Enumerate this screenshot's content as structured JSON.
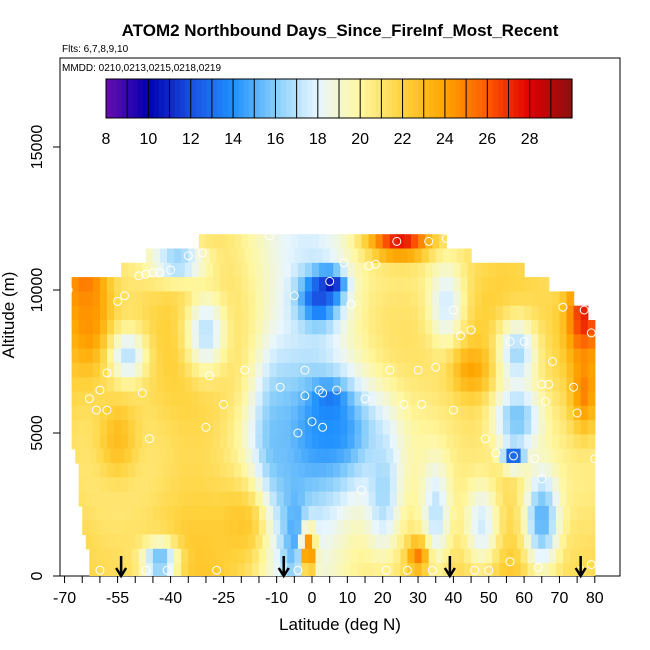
{
  "chart_data": {
    "type": "heatmap",
    "title": "ATOM2 Northbound Days_Since_FireInf_Most_Recent",
    "flights_label": "Flts: 6,7,8,9,10",
    "mmdd_label": "MMDD: 0210,0213,0215,0218,0219",
    "xlabel": "Latitude (deg N)",
    "ylabel": "Altitude (m)",
    "xlim": [
      -70,
      82
    ],
    "ylim": [
      0,
      17500
    ],
    "x_ticks": [
      -70,
      -55,
      -40,
      -25,
      -10,
      0,
      10,
      20,
      30,
      40,
      50,
      60,
      70,
      80
    ],
    "x_tick_labels": [
      "-70",
      "-55",
      "-40",
      "-25",
      "-10",
      "0",
      "10",
      "20",
      "30",
      "40",
      "50",
      "60",
      "70",
      "80"
    ],
    "x_minor_ticks": [
      -65,
      -60,
      -50,
      -45,
      -35,
      -30,
      -20,
      -15,
      -5,
      5,
      15,
      25,
      35,
      45,
      55,
      65,
      75
    ],
    "y_ticks": [
      0,
      5000,
      10000,
      15000
    ],
    "y_tick_labels": [
      "0",
      "5000",
      "10000",
      "15000"
    ],
    "colorbar": {
      "min": 8,
      "max": 30,
      "ticks": [
        8,
        10,
        12,
        14,
        16,
        18,
        20,
        22,
        24,
        26,
        28
      ],
      "tick_labels": [
        "8",
        "10",
        "12",
        "14",
        "16",
        "18",
        "20",
        "22",
        "24",
        "26",
        "28"
      ],
      "colors": [
        "#6a0dad",
        "#0000b0",
        "#1a4fe0",
        "#1e90ff",
        "#87cefa",
        "#e8f6ff",
        "#fff7a0",
        "#ffd23c",
        "#ffa500",
        "#ff5a00",
        "#e00000",
        "#8b1010"
      ]
    },
    "grid": false,
    "arrow_latitudes": [
      -54,
      -8,
      39,
      76
    ],
    "layers": [
      {
        "alt": 11700,
        "lat": [
          -32,
          38
        ]
      },
      {
        "alt": 11200,
        "lat": [
          -47,
          45
        ]
      },
      {
        "alt": 10700,
        "lat": [
          -54,
          60
        ]
      },
      {
        "alt": 10200,
        "lat": [
          -68,
          67
        ]
      },
      {
        "alt": 9700,
        "lat": [
          -68,
          74
        ]
      },
      {
        "alt": 9200,
        "lat": [
          -68,
          78
        ]
      },
      {
        "alt": 8700,
        "lat": [
          -68,
          80
        ]
      },
      {
        "alt": 8200,
        "lat": [
          -68,
          80
        ]
      },
      {
        "alt": 7700,
        "lat": [
          -68,
          80
        ]
      },
      {
        "alt": 7200,
        "lat": [
          -68,
          80
        ]
      },
      {
        "alt": 6700,
        "lat": [
          -68,
          80
        ]
      },
      {
        "alt": 6200,
        "lat": [
          -68,
          80
        ]
      },
      {
        "alt": 5700,
        "lat": [
          -68,
          80
        ]
      },
      {
        "alt": 5200,
        "lat": [
          -68,
          80
        ]
      },
      {
        "alt": 4700,
        "lat": [
          -68,
          80
        ]
      },
      {
        "alt": 4200,
        "lat": [
          -67,
          80
        ]
      },
      {
        "alt": 3700,
        "lat": [
          -66,
          80
        ]
      },
      {
        "alt": 3200,
        "lat": [
          -66,
          80
        ]
      },
      {
        "alt": 2700,
        "lat": [
          -66,
          80
        ]
      },
      {
        "alt": 2200,
        "lat": [
          -65,
          80
        ]
      },
      {
        "alt": 1700,
        "lat": [
          -65,
          80
        ]
      },
      {
        "alt": 1200,
        "lat": [
          -64,
          80
        ]
      },
      {
        "alt": 700,
        "lat": [
          -63,
          80
        ]
      },
      {
        "alt": 200,
        "lat": [
          -63,
          80
        ]
      }
    ],
    "field_features": [
      {
        "lat": -64,
        "alt": 10300,
        "value": 25.5,
        "sx": 6,
        "sy": 1800
      },
      {
        "lat": -63,
        "alt": 8800,
        "value": 24.5,
        "sx": 5,
        "sy": 1500
      },
      {
        "lat": 77,
        "alt": 9000,
        "value": 27.5,
        "sx": 5,
        "sy": 1500
      },
      {
        "lat": 77,
        "alt": 6500,
        "value": 25.0,
        "sx": 4,
        "sy": 1500
      },
      {
        "lat": 25,
        "alt": 11700,
        "value": 27.5,
        "sx": 9,
        "sy": 600
      },
      {
        "lat": 5,
        "alt": 10200,
        "value": 9.0,
        "sx": 4,
        "sy": 450
      },
      {
        "lat": 2,
        "alt": 9700,
        "value": 12.0,
        "sx": 6,
        "sy": 900
      },
      {
        "lat": 5,
        "alt": 6000,
        "value": 12.0,
        "sx": 5,
        "sy": 700
      },
      {
        "lat": 5,
        "alt": 5000,
        "value": 14.0,
        "sx": 14,
        "sy": 1600
      },
      {
        "lat": -10,
        "alt": 4200,
        "value": 15.5,
        "sx": 6,
        "sy": 3500
      },
      {
        "lat": -5,
        "alt": 1500,
        "value": 14.5,
        "sx": 4,
        "sy": 1800
      },
      {
        "lat": -1,
        "alt": 800,
        "value": 26.0,
        "sx": 2,
        "sy": 900
      },
      {
        "lat": 57,
        "alt": 4200,
        "value": 10.5,
        "sx": 3,
        "sy": 400
      },
      {
        "lat": 58,
        "alt": 5500,
        "value": 15.5,
        "sx": 7,
        "sy": 1200
      },
      {
        "lat": 58,
        "alt": 7800,
        "value": 16.5,
        "sx": 6,
        "sy": 1300
      },
      {
        "lat": -38,
        "alt": 11000,
        "value": 16.0,
        "sx": 8,
        "sy": 700
      },
      {
        "lat": -55,
        "alt": 4800,
        "value": 23.0,
        "sx": 6,
        "sy": 1500
      },
      {
        "lat": -43,
        "alt": 500,
        "value": 15.0,
        "sx": 5,
        "sy": 700
      },
      {
        "lat": 20,
        "alt": 3000,
        "value": 16.5,
        "sx": 5,
        "sy": 2200
      },
      {
        "lat": 35,
        "alt": 2200,
        "value": 17.0,
        "sx": 4,
        "sy": 1800
      },
      {
        "lat": 30,
        "alt": 700,
        "value": 25.0,
        "sx": 3,
        "sy": 600
      },
      {
        "lat": 48,
        "alt": 1800,
        "value": 17.5,
        "sx": 5,
        "sy": 1600
      },
      {
        "lat": 65,
        "alt": 2000,
        "value": 15.0,
        "sx": 5,
        "sy": 1800
      },
      {
        "lat": -52,
        "alt": 7700,
        "value": 17.0,
        "sx": 5,
        "sy": 900
      },
      {
        "lat": -30,
        "alt": 8500,
        "value": 17.0,
        "sx": 6,
        "sy": 1500
      },
      {
        "lat": 38,
        "alt": 9500,
        "value": 17.5,
        "sx": 5,
        "sy": 1500
      },
      {
        "lat": 45,
        "alt": 7200,
        "value": 24.0,
        "sx": 5,
        "sy": 800
      },
      {
        "lat": -20,
        "alt": 1800,
        "value": 22.5,
        "sx": 8,
        "sy": 1500
      }
    ],
    "observations": [
      {
        "lat": -69,
        "alt": 10000
      },
      {
        "lat": -55,
        "alt": 9600
      },
      {
        "lat": -53,
        "alt": 9800
      },
      {
        "lat": -49,
        "alt": 10500
      },
      {
        "lat": -47,
        "alt": 10550
      },
      {
        "lat": -45,
        "alt": 10600
      },
      {
        "lat": -43,
        "alt": 10600
      },
      {
        "lat": -40,
        "alt": 10700
      },
      {
        "lat": -35,
        "alt": 11200
      },
      {
        "lat": -31,
        "alt": 11300
      },
      {
        "lat": -12,
        "alt": 11900
      },
      {
        "lat": 9,
        "alt": 10950
      },
      {
        "lat": 5,
        "alt": 10300
      },
      {
        "lat": 16,
        "alt": 10850
      },
      {
        "lat": 18,
        "alt": 10900
      },
      {
        "lat": 24,
        "alt": 11700
      },
      {
        "lat": 33,
        "alt": 11700
      },
      {
        "lat": 38,
        "alt": 11800
      },
      {
        "lat": -5,
        "alt": 9800
      },
      {
        "lat": 40,
        "alt": 9300
      },
      {
        "lat": 42,
        "alt": 8400
      },
      {
        "lat": 45,
        "alt": 8600
      },
      {
        "lat": 60,
        "alt": 8200
      },
      {
        "lat": 56,
        "alt": 8200
      },
      {
        "lat": 71,
        "alt": 9400
      },
      {
        "lat": 77,
        "alt": 9300
      },
      {
        "lat": 79,
        "alt": 8500
      },
      {
        "lat": -58,
        "alt": 7100
      },
      {
        "lat": -63,
        "alt": 6200
      },
      {
        "lat": -60,
        "alt": 6500
      },
      {
        "lat": -61,
        "alt": 5800
      },
      {
        "lat": -58,
        "alt": 5800
      },
      {
        "lat": -48,
        "alt": 6400
      },
      {
        "lat": -29,
        "alt": 7000
      },
      {
        "lat": -19,
        "alt": 7200
      },
      {
        "lat": -9,
        "alt": 6600
      },
      {
        "lat": -2,
        "alt": 7200
      },
      {
        "lat": -2,
        "alt": 6300
      },
      {
        "lat": 3,
        "alt": 6400
      },
      {
        "lat": 2,
        "alt": 6500
      },
      {
        "lat": 7,
        "alt": 6500
      },
      {
        "lat": 15,
        "alt": 6200
      },
      {
        "lat": 22,
        "alt": 7200
      },
      {
        "lat": 30,
        "alt": 7200
      },
      {
        "lat": 35,
        "alt": 7300
      },
      {
        "lat": 31,
        "alt": 6000
      },
      {
        "lat": 26,
        "alt": 6000
      },
      {
        "lat": 40,
        "alt": 5800
      },
      {
        "lat": -25,
        "alt": 6000
      },
      {
        "lat": -30,
        "alt": 5200
      },
      {
        "lat": -46,
        "alt": 4800
      },
      {
        "lat": -4,
        "alt": 5000
      },
      {
        "lat": 0,
        "alt": 5400
      },
      {
        "lat": 3,
        "alt": 5200
      },
      {
        "lat": 65,
        "alt": 6700
      },
      {
        "lat": 67,
        "alt": 6700
      },
      {
        "lat": 74,
        "alt": 6600
      },
      {
        "lat": 66,
        "alt": 6100
      },
      {
        "lat": 75,
        "alt": 5700
      },
      {
        "lat": 52,
        "alt": 4300
      },
      {
        "lat": 49,
        "alt": 4800
      },
      {
        "lat": 57,
        "alt": 4200
      },
      {
        "lat": 63,
        "alt": 4100
      },
      {
        "lat": 80,
        "alt": 4100
      },
      {
        "lat": 65,
        "alt": 3400
      },
      {
        "lat": 14,
        "alt": 3000
      },
      {
        "lat": -60,
        "alt": 200
      },
      {
        "lat": -47,
        "alt": 200
      },
      {
        "lat": -41,
        "alt": 200
      },
      {
        "lat": -27,
        "alt": 200
      },
      {
        "lat": -4,
        "alt": 200
      },
      {
        "lat": 21,
        "alt": 200
      },
      {
        "lat": 27,
        "alt": 200
      },
      {
        "lat": 34,
        "alt": 200
      },
      {
        "lat": 46,
        "alt": 200
      },
      {
        "lat": 50,
        "alt": 200
      },
      {
        "lat": 56,
        "alt": 500
      },
      {
        "lat": 64,
        "alt": 300
      },
      {
        "lat": 76,
        "alt": 200
      },
      {
        "lat": 79,
        "alt": 400
      },
      {
        "lat": 11,
        "alt": 9500
      },
      {
        "lat": 68,
        "alt": 7500
      }
    ]
  }
}
